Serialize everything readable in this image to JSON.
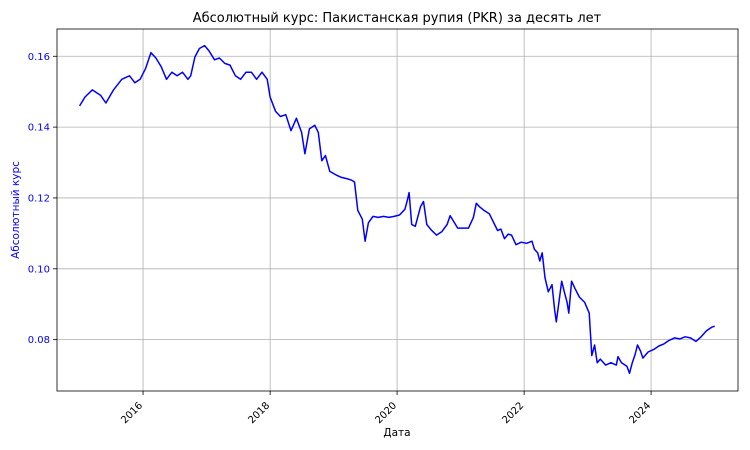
{
  "chart_data": {
    "type": "line",
    "title": "Абсолютный курс: Пакистанская рупия (PKR) за десять лет",
    "xlabel": "Дата",
    "ylabel": "Абсолютный курс",
    "xlim": [
      "2014-08-24",
      "2025-05-15"
    ],
    "ylim": [
      0.0655,
      0.1677
    ],
    "xticks": [
      "2016",
      "2018",
      "2020",
      "2022",
      "2024"
    ],
    "yticks": [
      "0.08",
      "0.10",
      "0.12",
      "0.14",
      "0.16"
    ],
    "grid": true,
    "series": [
      {
        "color": "#0000ff",
        "ylabel_color": "#0000ff",
        "points": [
          [
            "2015-01-01",
            0.146
          ],
          [
            "2015-02-01",
            0.1485
          ],
          [
            "2015-03-15",
            0.1505
          ],
          [
            "2015-05-01",
            0.149
          ],
          [
            "2015-06-01",
            0.1468
          ],
          [
            "2015-07-15",
            0.1505
          ],
          [
            "2015-09-01",
            0.1535
          ],
          [
            "2015-10-15",
            0.1545
          ],
          [
            "2015-11-15",
            0.1525
          ],
          [
            "2015-12-15",
            0.1535
          ],
          [
            "2016-01-15",
            0.1565
          ],
          [
            "2016-02-15",
            0.161
          ],
          [
            "2016-03-15",
            0.1595
          ],
          [
            "2016-04-15",
            0.157
          ],
          [
            "2016-05-15",
            0.1535
          ],
          [
            "2016-06-15",
            0.1555
          ],
          [
            "2016-07-15",
            0.1545
          ],
          [
            "2016-08-15",
            0.1555
          ],
          [
            "2016-09-15",
            0.1535
          ],
          [
            "2016-10-01",
            0.1545
          ],
          [
            "2016-10-25",
            0.1598
          ],
          [
            "2016-11-20",
            0.1622
          ],
          [
            "2016-12-20",
            0.163
          ],
          [
            "2017-01-15",
            0.1615
          ],
          [
            "2017-02-15",
            0.159
          ],
          [
            "2017-03-15",
            0.1595
          ],
          [
            "2017-04-15",
            0.158
          ],
          [
            "2017-05-15",
            0.1575
          ],
          [
            "2017-06-15",
            0.1545
          ],
          [
            "2017-07-15",
            0.1535
          ],
          [
            "2017-08-15",
            0.1555
          ],
          [
            "2017-09-15",
            0.1555
          ],
          [
            "2017-10-15",
            0.1535
          ],
          [
            "2017-11-15",
            0.1555
          ],
          [
            "2017-12-15",
            0.1535
          ],
          [
            "2018-01-01",
            0.1485
          ],
          [
            "2018-02-01",
            0.1445
          ],
          [
            "2018-03-01",
            0.143
          ],
          [
            "2018-04-01",
            0.1435
          ],
          [
            "2018-05-01",
            0.139
          ],
          [
            "2018-06-01",
            0.1425
          ],
          [
            "2018-07-01",
            0.1385
          ],
          [
            "2018-07-20",
            0.1325
          ],
          [
            "2018-08-15",
            0.1395
          ],
          [
            "2018-09-15",
            0.1405
          ],
          [
            "2018-10-05",
            0.1385
          ],
          [
            "2018-10-25",
            0.1305
          ],
          [
            "2018-11-15",
            0.132
          ],
          [
            "2018-12-10",
            0.1275
          ],
          [
            "2019-01-15",
            0.1265
          ],
          [
            "2019-02-15",
            0.1258
          ],
          [
            "2019-03-15",
            0.1255
          ],
          [
            "2019-04-15",
            0.125
          ],
          [
            "2019-05-01",
            0.1245
          ],
          [
            "2019-05-20",
            0.1165
          ],
          [
            "2019-06-15",
            0.114
          ],
          [
            "2019-07-01",
            0.1078
          ],
          [
            "2019-07-20",
            0.113
          ],
          [
            "2019-08-15",
            0.1148
          ],
          [
            "2019-09-15",
            0.1145
          ],
          [
            "2019-10-15",
            0.1148
          ],
          [
            "2019-11-15",
            0.1145
          ],
          [
            "2019-12-15",
            0.1148
          ],
          [
            "2020-01-15",
            0.1152
          ],
          [
            "2020-02-15",
            0.1168
          ],
          [
            "2020-03-01",
            0.1195
          ],
          [
            "2020-03-10",
            0.1215
          ],
          [
            "2020-03-25",
            0.1125
          ],
          [
            "2020-04-15",
            0.112
          ],
          [
            "2020-05-15",
            0.1175
          ],
          [
            "2020-06-01",
            0.119
          ],
          [
            "2020-06-20",
            0.1125
          ],
          [
            "2020-07-15",
            0.111
          ],
          [
            "2020-08-15",
            0.1095
          ],
          [
            "2020-09-15",
            0.1105
          ],
          [
            "2020-10-15",
            0.1125
          ],
          [
            "2020-11-01",
            0.115
          ],
          [
            "2020-11-20",
            0.1135
          ],
          [
            "2020-12-15",
            0.1115
          ],
          [
            "2021-01-15",
            0.1115
          ],
          [
            "2021-02-15",
            0.1115
          ],
          [
            "2021-03-15",
            0.1145
          ],
          [
            "2021-04-01",
            0.1185
          ],
          [
            "2021-04-20",
            0.1175
          ],
          [
            "2021-05-15",
            0.1165
          ],
          [
            "2021-06-15",
            0.1155
          ],
          [
            "2021-07-15",
            0.1125
          ],
          [
            "2021-08-01",
            0.1108
          ],
          [
            "2021-08-20",
            0.1112
          ],
          [
            "2021-09-10",
            0.1085
          ],
          [
            "2021-10-01",
            0.1098
          ],
          [
            "2021-10-20",
            0.1095
          ],
          [
            "2021-11-15",
            0.1068
          ],
          [
            "2021-12-15",
            0.1075
          ],
          [
            "2022-01-15",
            0.1072
          ],
          [
            "2022-02-15",
            0.1078
          ],
          [
            "2022-03-01",
            0.1055
          ],
          [
            "2022-03-20",
            0.1045
          ],
          [
            "2022-04-01",
            0.1022
          ],
          [
            "2022-04-15",
            0.1045
          ],
          [
            "2022-05-01",
            0.0975
          ],
          [
            "2022-05-20",
            0.0935
          ],
          [
            "2022-06-10",
            0.0955
          ],
          [
            "2022-06-25",
            0.0885
          ],
          [
            "2022-07-05",
            0.085
          ],
          [
            "2022-07-20",
            0.0905
          ],
          [
            "2022-08-05",
            0.0965
          ],
          [
            "2022-08-20",
            0.0935
          ],
          [
            "2022-09-05",
            0.0905
          ],
          [
            "2022-09-15",
            0.0875
          ],
          [
            "2022-10-01",
            0.0965
          ],
          [
            "2022-10-20",
            0.0945
          ],
          [
            "2022-11-15",
            0.092
          ],
          [
            "2022-12-15",
            0.0905
          ],
          [
            "2023-01-10",
            0.0875
          ],
          [
            "2023-01-25",
            0.0755
          ],
          [
            "2023-02-10",
            0.0785
          ],
          [
            "2023-02-25",
            0.0735
          ],
          [
            "2023-03-15",
            0.0745
          ],
          [
            "2023-04-15",
            0.0728
          ],
          [
            "2023-05-15",
            0.0735
          ],
          [
            "2023-06-15",
            0.0728
          ],
          [
            "2023-06-25",
            0.0752
          ],
          [
            "2023-07-15",
            0.0735
          ],
          [
            "2023-08-15",
            0.0725
          ],
          [
            "2023-08-30",
            0.0705
          ],
          [
            "2023-09-15",
            0.0735
          ],
          [
            "2023-10-01",
            0.0758
          ],
          [
            "2023-10-15",
            0.0785
          ],
          [
            "2023-11-01",
            0.0768
          ],
          [
            "2023-11-15",
            0.0748
          ],
          [
            "2023-12-15",
            0.0765
          ],
          [
            "2024-01-15",
            0.0772
          ],
          [
            "2024-02-15",
            0.0782
          ],
          [
            "2024-03-15",
            0.0788
          ],
          [
            "2024-04-15",
            0.0798
          ],
          [
            "2024-05-15",
            0.0805
          ],
          [
            "2024-06-15",
            0.0802
          ],
          [
            "2024-07-15",
            0.0808
          ],
          [
            "2024-08-15",
            0.0805
          ],
          [
            "2024-09-15",
            0.0795
          ],
          [
            "2024-10-15",
            0.0808
          ],
          [
            "2024-11-15",
            0.0825
          ],
          [
            "2024-12-15",
            0.0835
          ],
          [
            "2025-01-01",
            0.0838
          ]
        ]
      }
    ]
  }
}
